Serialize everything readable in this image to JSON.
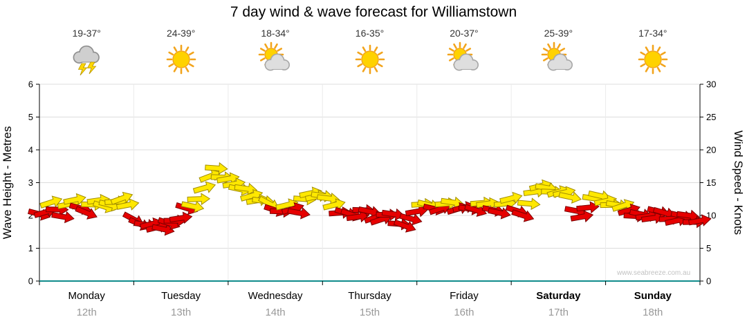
{
  "title": "7 day wind & wave forecast for Williamstown",
  "watermark": "www.seabreeze.com.au",
  "days": [
    {
      "name": "Monday",
      "date": "12th",
      "temp": "19-37°",
      "icon": "storm",
      "bold": false
    },
    {
      "name": "Tuesday",
      "date": "13th",
      "temp": "24-39°",
      "icon": "sunny",
      "bold": false
    },
    {
      "name": "Wednesday",
      "date": "14th",
      "temp": "18-34°",
      "icon": "partly-cloudy",
      "bold": false
    },
    {
      "name": "Thursday",
      "date": "15th",
      "temp": "16-35°",
      "icon": "sunny",
      "bold": false
    },
    {
      "name": "Friday",
      "date": "16th",
      "temp": "20-37°",
      "icon": "partly-cloudy",
      "bold": false
    },
    {
      "name": "Saturday",
      "date": "17th",
      "temp": "25-39°",
      "icon": "partly-cloudy",
      "bold": true
    },
    {
      "name": "Sunday",
      "date": "18th",
      "temp": "17-34°",
      "icon": "sunny",
      "bold": true
    }
  ],
  "chart_data": {
    "type": "wind-arrows",
    "title": "7 day wind & wave forecast for Williamstown",
    "left_axis": {
      "label": "Wave Height - Metres",
      "min": 0,
      "max": 6,
      "ticks": [
        0,
        1,
        2,
        3,
        4,
        5,
        6
      ]
    },
    "right_axis": {
      "label": "Wind Speed - Knots",
      "min": 0,
      "max": 30,
      "ticks": [
        0,
        5,
        10,
        15,
        20,
        25,
        30
      ]
    },
    "x_axis": {
      "days": [
        "Monday",
        "Tuesday",
        "Wednesday",
        "Thursday",
        "Friday",
        "Saturday",
        "Sunday"
      ],
      "hours_total": 168
    },
    "grid": true,
    "speed_colors": [
      {
        "max_knots": 11.2,
        "color": "#e60000",
        "edge": "#7a0000"
      },
      {
        "max_knots": 30,
        "color": "#ffe800",
        "edge": "#a08c00"
      }
    ],
    "wind_points": [
      [
        0,
        10.2,
        15
      ],
      [
        3,
        12.0,
        -18
      ],
      [
        6,
        9.8,
        10
      ],
      [
        9,
        12.4,
        -12
      ],
      [
        12,
        10.4,
        22
      ],
      [
        15,
        12.3,
        -8
      ],
      [
        18,
        11.6,
        14
      ],
      [
        21,
        12.6,
        -20
      ],
      [
        24,
        9.4,
        28
      ],
      [
        27,
        8.6,
        8
      ],
      [
        30,
        8.2,
        -14
      ],
      [
        33,
        8.8,
        18
      ],
      [
        36,
        9.6,
        -8
      ],
      [
        39,
        11.4,
        12
      ],
      [
        42,
        14.2,
        -16
      ],
      [
        45,
        17.2,
        4
      ],
      [
        48,
        15.6,
        -10
      ],
      [
        51,
        14.0,
        12
      ],
      [
        54,
        13.0,
        -16
      ],
      [
        57,
        12.2,
        8
      ],
      [
        60,
        10.8,
        18
      ],
      [
        63,
        11.6,
        -14
      ],
      [
        66,
        10.4,
        10
      ],
      [
        69,
        13.4,
        -12
      ],
      [
        72,
        13.0,
        8
      ],
      [
        75,
        11.6,
        -14
      ],
      [
        78,
        10.4,
        16
      ],
      [
        81,
        9.8,
        -8
      ],
      [
        84,
        10.6,
        12
      ],
      [
        87,
        9.4,
        -18
      ],
      [
        90,
        10.2,
        8
      ],
      [
        93,
        8.4,
        20
      ],
      [
        96,
        10.6,
        -10
      ],
      [
        99,
        11.6,
        14
      ],
      [
        102,
        11.0,
        -18
      ],
      [
        105,
        12.0,
        8
      ],
      [
        108,
        11.2,
        -12
      ],
      [
        111,
        10.8,
        18
      ],
      [
        114,
        11.8,
        -8
      ],
      [
        117,
        10.4,
        12
      ],
      [
        120,
        12.6,
        -14
      ],
      [
        123,
        10.0,
        18
      ],
      [
        126,
        13.6,
        -8
      ],
      [
        129,
        14.2,
        10
      ],
      [
        132,
        13.6,
        -16
      ],
      [
        135,
        12.8,
        12
      ],
      [
        138,
        9.8,
        -10
      ],
      [
        141,
        12.6,
        8
      ],
      [
        144,
        12.2,
        -12
      ],
      [
        147,
        11.6,
        10
      ],
      [
        150,
        10.8,
        -16
      ],
      [
        153,
        10.2,
        12
      ],
      [
        156,
        9.6,
        -8
      ],
      [
        159,
        10.4,
        16
      ],
      [
        162,
        9.2,
        -12
      ],
      [
        165,
        10.0,
        8
      ],
      [
        168,
        9.2,
        -10
      ]
    ]
  }
}
